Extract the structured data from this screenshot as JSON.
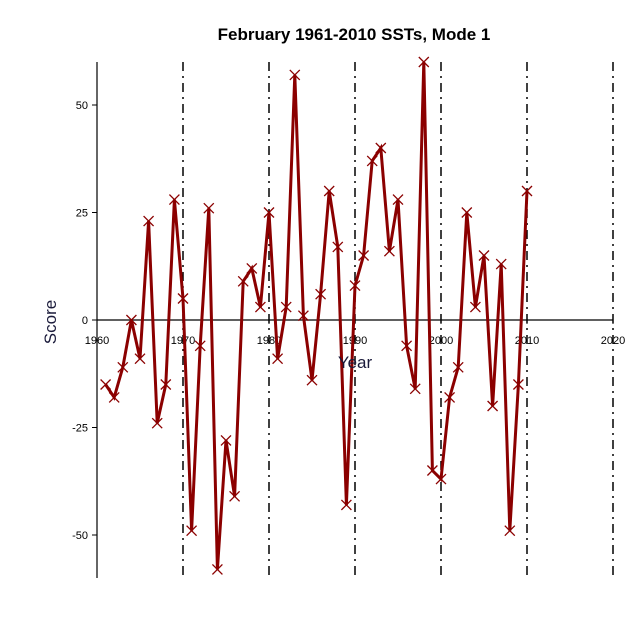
{
  "chart_data": {
    "type": "line",
    "title": "February 1961-2010 SSTs, Mode 1",
    "xlabel": "Year",
    "ylabel": "Score",
    "xlim": [
      1960,
      2020
    ],
    "ylim": [
      -60,
      60
    ],
    "xticks": [
      1960,
      1970,
      1980,
      1990,
      2000,
      2010,
      2020
    ],
    "yticks": [
      50,
      25,
      0,
      -25,
      -50
    ],
    "decade_lines": [
      1970,
      1980,
      1990,
      2000,
      2010,
      2020
    ],
    "grid": false,
    "line_color": "#8b0000",
    "series": [
      {
        "name": "Mode 1",
        "x": [
          1961,
          1962,
          1963,
          1964,
          1965,
          1966,
          1967,
          1968,
          1969,
          1970,
          1971,
          1972,
          1973,
          1974,
          1975,
          1976,
          1977,
          1978,
          1979,
          1980,
          1981,
          1982,
          1983,
          1984,
          1985,
          1986,
          1987,
          1988,
          1989,
          1990,
          1991,
          1992,
          1993,
          1994,
          1995,
          1996,
          1997,
          1998,
          1999,
          2000,
          2001,
          2002,
          2003,
          2004,
          2005,
          2006,
          2007,
          2008,
          2009,
          2010
        ],
        "values": [
          -15,
          -18,
          -11,
          0,
          -9,
          23,
          -24,
          -15,
          28,
          5,
          -49,
          -6,
          26,
          -58,
          -28,
          -41,
          9,
          12,
          3,
          25,
          -9,
          3,
          57,
          1,
          -14,
          6,
          30,
          17,
          -43,
          8,
          15,
          37,
          40,
          16,
          28,
          -6,
          -16,
          60,
          -35,
          -37,
          -18,
          -11,
          25,
          3,
          15,
          -20,
          13,
          -49,
          -15,
          30
        ]
      }
    ]
  }
}
